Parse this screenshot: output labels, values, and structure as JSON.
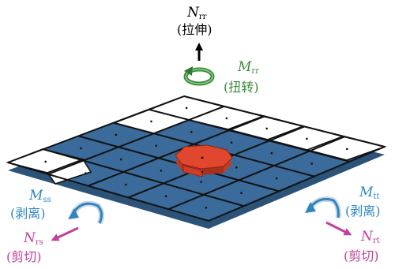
{
  "labels": {
    "nrr": {
      "symbol": "N",
      "sub": "rr",
      "desc": "(拉伸)"
    },
    "mrr": {
      "symbol": "M",
      "sub": "rr",
      "desc": "(扭转)"
    },
    "mss": {
      "symbol": "M",
      "sub": "ss",
      "desc": "(剥离)"
    },
    "nrs": {
      "symbol": "N",
      "sub": "rs",
      "desc": "(剪切)"
    },
    "mtt": {
      "symbol": "M",
      "sub": "tt",
      "desc": "(剥离)"
    },
    "nrt": {
      "symbol": "N",
      "sub": "rt",
      "desc": "(剪切)"
    }
  },
  "colors": {
    "plate_fill": "#3a6b9a",
    "plate_dark": "#2b5378",
    "grid_line": "#111111",
    "nugget": "#e0472e",
    "nugget_dark": "#a8301c",
    "tension": "#000000",
    "torsion": "#3a8a3a",
    "peel": "#2e86c1",
    "shear": "#c2409a"
  },
  "icons": [
    "tension-arrow",
    "torsion-arrow-icon",
    "peel-arrow-icon",
    "shear-arrow"
  ]
}
